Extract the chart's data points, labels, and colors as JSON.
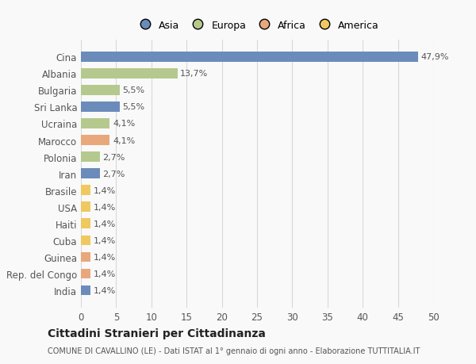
{
  "countries": [
    "Cina",
    "Albania",
    "Bulgaria",
    "Sri Lanka",
    "Ucraina",
    "Marocco",
    "Polonia",
    "Iran",
    "Brasile",
    "USA",
    "Haiti",
    "Cuba",
    "Guinea",
    "Rep. del Congo",
    "India"
  ],
  "values": [
    47.9,
    13.7,
    5.5,
    5.5,
    4.1,
    4.1,
    2.7,
    2.7,
    1.4,
    1.4,
    1.4,
    1.4,
    1.4,
    1.4,
    1.4
  ],
  "labels": [
    "47,9%",
    "13,7%",
    "5,5%",
    "5,5%",
    "4,1%",
    "4,1%",
    "2,7%",
    "2,7%",
    "1,4%",
    "1,4%",
    "1,4%",
    "1,4%",
    "1,4%",
    "1,4%",
    "1,4%"
  ],
  "colors": [
    "#6b8cba",
    "#b5c98e",
    "#b5c98e",
    "#6b8cba",
    "#b5c98e",
    "#e8a87c",
    "#b5c98e",
    "#6b8cba",
    "#f0c860",
    "#f0c860",
    "#f0c860",
    "#f0c860",
    "#e8a87c",
    "#e8a87c",
    "#6b8cba"
  ],
  "legend_labels": [
    "Asia",
    "Europa",
    "Africa",
    "America"
  ],
  "legend_colors": [
    "#6b8cba",
    "#b5c98e",
    "#e8a87c",
    "#f0c860"
  ],
  "title": "Cittadini Stranieri per Cittadinanza",
  "subtitle": "COMUNE DI CAVALLINO (LE) - Dati ISTAT al 1° gennaio di ogni anno - Elaborazione TUTTITALIA.IT",
  "xlim": [
    0,
    50
  ],
  "xticks": [
    0,
    5,
    10,
    15,
    20,
    25,
    30,
    35,
    40,
    45,
    50
  ],
  "background_color": "#f9f9f9",
  "grid_color": "#d8d8d8",
  "bar_height": 0.6
}
